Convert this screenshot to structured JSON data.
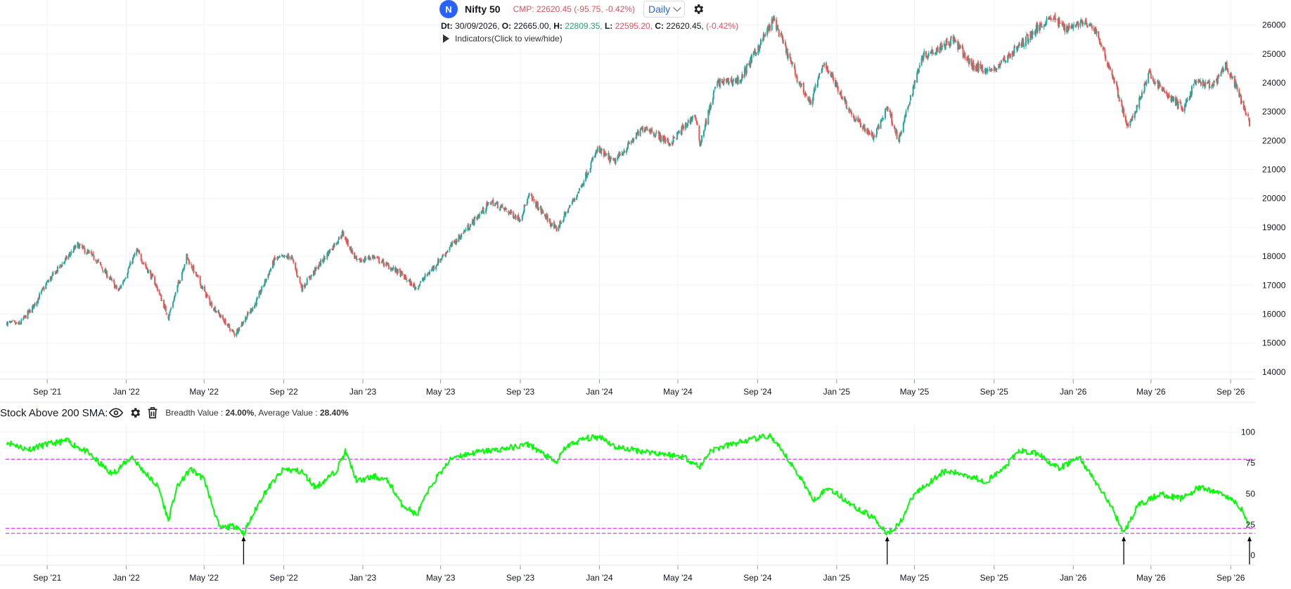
{
  "header": {
    "badge_letter": "N",
    "symbol": "Nifty 50",
    "cmp_text": "CMP: 22620.45 (-95.75, -0.42%)",
    "timeframe": "Daily",
    "date_label": "Dt:",
    "date_value": "30/09/2026,",
    "open_label": "O:",
    "open_value": "22665.00,",
    "high_label": "H:",
    "high_value": "22809.35,",
    "low_label": "L:",
    "low_value": "22595.20,",
    "close_label": "C:",
    "close_value": "22620.45,",
    "change_pct": "(-0.42%)",
    "indicators_label": "Indicators(Click to view/hide)",
    "gear_icon": "gear-icon",
    "chevron_icon": "chevron-down-icon"
  },
  "lower_panel": {
    "title": "Stock Above 200 SMA:",
    "breadth_label": "Breadth Value :",
    "breadth_value": "24.00%",
    "average_label": ", Average Value :",
    "average_value": "28.40%",
    "icons": [
      "eye-icon",
      "gear-icon",
      "trash-icon"
    ]
  },
  "colors": {
    "up": "#26a69a",
    "down": "#ef5350",
    "breadth_line": "#00ff00",
    "threshold_line": "#e040fb",
    "badge": "#2962ff"
  },
  "chart_data": [
    {
      "type": "candlestick",
      "title": "Nifty 50",
      "x_ticks": [
        "Sep '21",
        "Jan '22",
        "May '22",
        "Sep '22",
        "Jan '23",
        "May '23",
        "Sep '23",
        "Jan '24",
        "May '24",
        "Sep '24",
        "Jan '25",
        "May '25",
        "Sep '25",
        "Jan '26",
        "May '26",
        "Sep '26"
      ],
      "x_tick_dates": [
        "2021-09-01",
        "2022-01-01",
        "2022-05-01",
        "2022-09-01",
        "2023-01-01",
        "2023-05-01",
        "2023-09-01",
        "2024-01-01",
        "2024-05-01",
        "2024-09-01",
        "2025-01-01",
        "2025-05-01",
        "2025-09-01",
        "2026-01-01",
        "2026-05-01",
        "2026-09-01"
      ],
      "x_range": [
        "2021-07-01",
        "2026-09-30"
      ],
      "y_ticks": [
        14000,
        15000,
        16000,
        17000,
        18000,
        19000,
        20000,
        21000,
        22000,
        23000,
        24000,
        25000,
        26000
      ],
      "ylim": [
        13900,
        26500
      ],
      "grid": true,
      "close_path": [
        {
          "d": "2021-07-01",
          "v": 15700
        },
        {
          "d": "2021-07-20",
          "v": 15650
        },
        {
          "d": "2021-08-10",
          "v": 16250
        },
        {
          "d": "2021-09-01",
          "v": 17100
        },
        {
          "d": "2021-10-18",
          "v": 18400
        },
        {
          "d": "2021-11-15",
          "v": 17900
        },
        {
          "d": "2021-12-20",
          "v": 16800
        },
        {
          "d": "2022-01-17",
          "v": 18200
        },
        {
          "d": "2022-02-14",
          "v": 17100
        },
        {
          "d": "2022-03-07",
          "v": 15900
        },
        {
          "d": "2022-04-04",
          "v": 18000
        },
        {
          "d": "2022-05-10",
          "v": 16400
        },
        {
          "d": "2022-06-17",
          "v": 15300
        },
        {
          "d": "2022-07-20",
          "v": 16400
        },
        {
          "d": "2022-08-18",
          "v": 17900
        },
        {
          "d": "2022-09-12",
          "v": 18000
        },
        {
          "d": "2022-09-29",
          "v": 16900
        },
        {
          "d": "2022-12-01",
          "v": 18800
        },
        {
          "d": "2022-12-23",
          "v": 17800
        },
        {
          "d": "2023-01-16",
          "v": 18000
        },
        {
          "d": "2023-02-28",
          "v": 17400
        },
        {
          "d": "2023-03-24",
          "v": 16900
        },
        {
          "d": "2023-05-15",
          "v": 18300
        },
        {
          "d": "2023-07-18",
          "v": 19900
        },
        {
          "d": "2023-08-31",
          "v": 19300
        },
        {
          "d": "2023-09-15",
          "v": 20100
        },
        {
          "d": "2023-10-26",
          "v": 18900
        },
        {
          "d": "2023-12-01",
          "v": 20300
        },
        {
          "d": "2023-12-29",
          "v": 21700
        },
        {
          "d": "2024-01-23",
          "v": 21250
        },
        {
          "d": "2024-03-11",
          "v": 22500
        },
        {
          "d": "2024-04-19",
          "v": 21900
        },
        {
          "d": "2024-05-27",
          "v": 22900
        },
        {
          "d": "2024-06-04",
          "v": 21900
        },
        {
          "d": "2024-06-30",
          "v": 24000
        },
        {
          "d": "2024-08-05",
          "v": 24100
        },
        {
          "d": "2024-09-26",
          "v": 26200
        },
        {
          "d": "2024-10-31",
          "v": 24200
        },
        {
          "d": "2024-11-21",
          "v": 23300
        },
        {
          "d": "2024-12-13",
          "v": 24700
        },
        {
          "d": "2025-01-27",
          "v": 22800
        },
        {
          "d": "2025-02-28",
          "v": 22100
        },
        {
          "d": "2025-03-20",
          "v": 23200
        },
        {
          "d": "2025-04-07",
          "v": 22000
        },
        {
          "d": "2025-05-12",
          "v": 24900
        },
        {
          "d": "2025-06-30",
          "v": 25500
        },
        {
          "d": "2025-07-28",
          "v": 24600
        },
        {
          "d": "2025-08-29",
          "v": 24400
        },
        {
          "d": "2025-10-01",
          "v": 25100
        },
        {
          "d": "2025-11-27",
          "v": 26300
        },
        {
          "d": "2025-12-20",
          "v": 25900
        },
        {
          "d": "2026-01-15",
          "v": 26100
        },
        {
          "d": "2026-02-05",
          "v": 25800
        },
        {
          "d": "2026-03-05",
          "v": 24100
        },
        {
          "d": "2026-03-27",
          "v": 22400
        },
        {
          "d": "2026-04-28",
          "v": 24300
        },
        {
          "d": "2026-05-25",
          "v": 23600
        },
        {
          "d": "2026-06-20",
          "v": 23100
        },
        {
          "d": "2026-07-08",
          "v": 24000
        },
        {
          "d": "2026-08-05",
          "v": 23900
        },
        {
          "d": "2026-08-25",
          "v": 24600
        },
        {
          "d": "2026-09-10",
          "v": 23800
        },
        {
          "d": "2026-09-30",
          "v": 22620
        }
      ]
    },
    {
      "type": "line",
      "title": "Stock Above 200 SMA",
      "x_ticks": [
        "Sep '21",
        "Jan '22",
        "May '22",
        "Sep '22",
        "Jan '23",
        "May '23",
        "Sep '23",
        "Jan '24",
        "May '24",
        "Sep '24",
        "Jan '25",
        "May '25",
        "Sep '25",
        "Jan '26",
        "May '26",
        "Sep '26"
      ],
      "x_tick_dates": [
        "2021-09-01",
        "2022-01-01",
        "2022-05-01",
        "2022-09-01",
        "2023-01-01",
        "2023-05-01",
        "2023-09-01",
        "2024-01-01",
        "2024-05-01",
        "2024-09-01",
        "2025-01-01",
        "2025-05-01",
        "2025-09-01",
        "2026-01-01",
        "2026-05-01",
        "2026-09-01"
      ],
      "x_range": [
        "2021-07-01",
        "2026-09-30"
      ],
      "y_ticks": [
        0,
        25,
        50,
        75,
        100
      ],
      "ylim": [
        -5,
        106
      ],
      "threshold_lines": [
        78,
        22,
        18
      ],
      "low_markers": [
        "2022-07-01",
        "2025-03-20",
        "2026-03-20",
        "2026-09-30"
      ],
      "series": [
        {
          "values": [
            {
              "d": "2021-07-01",
              "v": 92
            },
            {
              "d": "2021-08-01",
              "v": 86
            },
            {
              "d": "2021-09-01",
              "v": 90
            },
            {
              "d": "2021-10-01",
              "v": 93
            },
            {
              "d": "2021-11-01",
              "v": 84
            },
            {
              "d": "2021-12-10",
              "v": 66
            },
            {
              "d": "2022-01-10",
              "v": 80
            },
            {
              "d": "2022-01-25",
              "v": 70
            },
            {
              "d": "2022-02-20",
              "v": 55
            },
            {
              "d": "2022-03-07",
              "v": 28
            },
            {
              "d": "2022-03-20",
              "v": 55
            },
            {
              "d": "2022-04-10",
              "v": 70
            },
            {
              "d": "2022-05-01",
              "v": 62
            },
            {
              "d": "2022-05-25",
              "v": 22
            },
            {
              "d": "2022-06-20",
              "v": 24
            },
            {
              "d": "2022-07-01",
              "v": 18
            },
            {
              "d": "2022-08-01",
              "v": 50
            },
            {
              "d": "2022-09-01",
              "v": 70
            },
            {
              "d": "2022-09-29",
              "v": 68
            },
            {
              "d": "2022-10-20",
              "v": 55
            },
            {
              "d": "2022-11-20",
              "v": 68
            },
            {
              "d": "2022-12-05",
              "v": 84
            },
            {
              "d": "2022-12-23",
              "v": 60
            },
            {
              "d": "2023-01-20",
              "v": 64
            },
            {
              "d": "2023-02-10",
              "v": 60
            },
            {
              "d": "2023-03-01",
              "v": 42
            },
            {
              "d": "2023-03-25",
              "v": 33
            },
            {
              "d": "2023-04-20",
              "v": 60
            },
            {
              "d": "2023-05-20",
              "v": 80
            },
            {
              "d": "2023-06-30",
              "v": 84
            },
            {
              "d": "2023-08-01",
              "v": 86
            },
            {
              "d": "2023-09-15",
              "v": 90
            },
            {
              "d": "2023-10-26",
              "v": 75
            },
            {
              "d": "2023-11-10",
              "v": 88
            },
            {
              "d": "2023-12-10",
              "v": 95
            },
            {
              "d": "2024-01-05",
              "v": 96
            },
            {
              "d": "2024-01-25",
              "v": 88
            },
            {
              "d": "2024-03-01",
              "v": 85
            },
            {
              "d": "2024-04-01",
              "v": 83
            },
            {
              "d": "2024-05-10",
              "v": 80
            },
            {
              "d": "2024-06-04",
              "v": 72
            },
            {
              "d": "2024-06-20",
              "v": 85
            },
            {
              "d": "2024-08-05",
              "v": 92
            },
            {
              "d": "2024-09-20",
              "v": 97
            },
            {
              "d": "2024-10-15",
              "v": 80
            },
            {
              "d": "2024-11-10",
              "v": 60
            },
            {
              "d": "2024-11-25",
              "v": 45
            },
            {
              "d": "2024-12-20",
              "v": 55
            },
            {
              "d": "2025-01-27",
              "v": 40
            },
            {
              "d": "2025-02-28",
              "v": 30
            },
            {
              "d": "2025-03-20",
              "v": 18
            },
            {
              "d": "2025-04-07",
              "v": 25
            },
            {
              "d": "2025-05-01",
              "v": 50
            },
            {
              "d": "2025-06-15",
              "v": 68
            },
            {
              "d": "2025-07-15",
              "v": 66
            },
            {
              "d": "2025-08-20",
              "v": 60
            },
            {
              "d": "2025-09-15",
              "v": 70
            },
            {
              "d": "2025-10-10",
              "v": 85
            },
            {
              "d": "2025-11-10",
              "v": 82
            },
            {
              "d": "2025-12-10",
              "v": 70
            },
            {
              "d": "2026-01-10",
              "v": 80
            },
            {
              "d": "2026-02-10",
              "v": 55
            },
            {
              "d": "2026-03-01",
              "v": 40
            },
            {
              "d": "2026-03-20",
              "v": 18
            },
            {
              "d": "2026-04-10",
              "v": 40
            },
            {
              "d": "2026-05-15",
              "v": 50
            },
            {
              "d": "2026-06-15",
              "v": 46
            },
            {
              "d": "2026-07-15",
              "v": 55
            },
            {
              "d": "2026-08-20",
              "v": 50
            },
            {
              "d": "2026-09-15",
              "v": 40
            },
            {
              "d": "2026-09-30",
              "v": 24
            }
          ]
        }
      ]
    }
  ]
}
